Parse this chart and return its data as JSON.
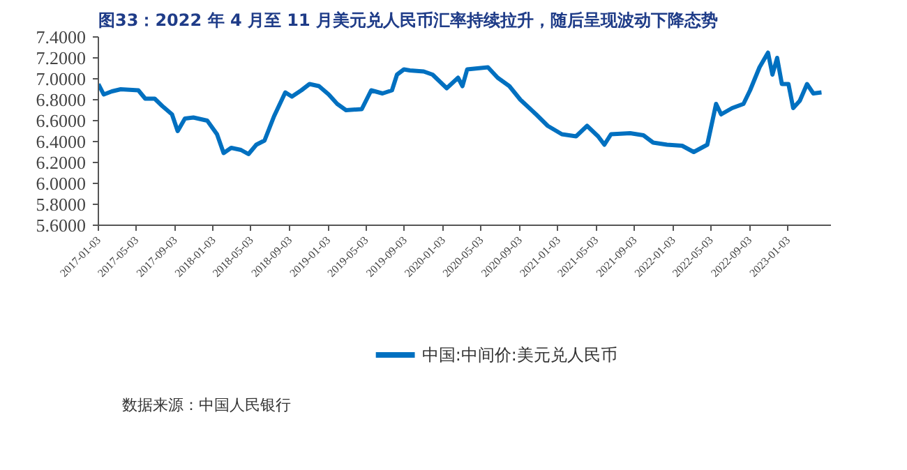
{
  "chart_data": {
    "type": "line",
    "title": "图33：2022 年 4 月至 11 月美元兑人民币汇率持续拉升，随后呈现波动下降态势",
    "x": [
      "2017-01-03",
      "2017-01-20",
      "2017-02-15",
      "2017-03-15",
      "2017-05-10",
      "2017-06-01",
      "2017-07-01",
      "2017-07-25",
      "2017-08-25",
      "2017-09-12",
      "2017-10-05",
      "2017-11-01",
      "2017-12-15",
      "2018-01-15",
      "2018-02-05",
      "2018-03-01",
      "2018-04-01",
      "2018-04-25",
      "2018-05-20",
      "2018-06-15",
      "2018-07-15",
      "2018-08-20",
      "2018-09-10",
      "2018-10-10",
      "2018-11-05",
      "2018-12-05",
      "2019-01-05",
      "2019-02-01",
      "2019-03-01",
      "2019-04-20",
      "2019-05-20",
      "2019-06-25",
      "2019-07-25",
      "2019-08-10",
      "2019-09-01",
      "2019-09-20",
      "2019-11-03",
      "2019-12-01",
      "2020-01-15",
      "2020-02-20",
      "2020-03-05",
      "2020-03-20",
      "2020-05-25",
      "2020-06-25",
      "2020-08-01",
      "2020-09-05",
      "2020-10-25",
      "2020-12-01",
      "2021-01-15",
      "2021-03-01",
      "2021-04-05",
      "2021-05-10",
      "2021-05-30",
      "2021-06-20",
      "2021-08-20",
      "2021-10-01",
      "2021-11-01",
      "2021-12-15",
      "2022-02-01",
      "2022-03-10",
      "2022-04-22",
      "2022-05-20",
      "2022-06-05",
      "2022-07-10",
      "2022-08-15",
      "2022-09-05",
      "2022-10-05",
      "2022-11-01",
      "2022-11-15",
      "2022-11-30",
      "2022-12-15",
      "2023-01-05",
      "2023-01-20",
      "2023-02-10",
      "2023-03-05",
      "2023-03-25",
      "2023-04-20"
    ],
    "series": [
      {
        "name": "中国:中间价:美元兑人民币",
        "color": "#0070c0",
        "values": [
          6.95,
          6.85,
          6.88,
          6.9,
          6.89,
          6.81,
          6.81,
          6.74,
          6.66,
          6.5,
          6.62,
          6.63,
          6.6,
          6.47,
          6.29,
          6.34,
          6.32,
          6.28,
          6.37,
          6.41,
          6.64,
          6.87,
          6.83,
          6.89,
          6.95,
          6.93,
          6.85,
          6.76,
          6.7,
          6.71,
          6.89,
          6.86,
          6.89,
          7.04,
          7.09,
          7.08,
          7.07,
          7.04,
          6.91,
          7.01,
          6.93,
          7.09,
          7.11,
          7.01,
          6.93,
          6.8,
          6.66,
          6.55,
          6.47,
          6.45,
          6.55,
          6.45,
          6.37,
          6.47,
          6.48,
          6.46,
          6.39,
          6.37,
          6.36,
          6.3,
          6.37,
          6.76,
          6.66,
          6.72,
          6.76,
          6.89,
          7.11,
          7.25,
          7.04,
          7.2,
          6.95,
          6.95,
          6.72,
          6.79,
          6.95,
          6.86,
          6.87
        ]
      }
    ],
    "xlim": [
      "2017-01-03",
      "2023-05-20"
    ],
    "xticks": [
      "2017-01-03",
      "2017-05-03",
      "2017-09-03",
      "2018-01-03",
      "2018-05-03",
      "2018-09-03",
      "2019-01-03",
      "2019-05-03",
      "2019-09-03",
      "2020-01-03",
      "2020-05-03",
      "2020-09-03",
      "2021-01-03",
      "2021-05-03",
      "2021-09-03",
      "2022-01-03",
      "2022-05-03",
      "2022-09-03",
      "2023-01-03"
    ],
    "ylim": [
      5.6,
      7.4
    ],
    "yticks": [
      {
        "value": 5.6,
        "label": "5.6000"
      },
      {
        "value": 5.8,
        "label": "5.8000"
      },
      {
        "value": 6.0,
        "label": "6.0000"
      },
      {
        "value": 6.2,
        "label": "6.2000"
      },
      {
        "value": 6.4,
        "label": "6.4000"
      },
      {
        "value": 6.6,
        "label": "6.6000"
      },
      {
        "value": 6.8,
        "label": "6.8000"
      },
      {
        "value": 7.0,
        "label": "7.0000"
      },
      {
        "value": 7.2,
        "label": "7.2000"
      },
      {
        "value": 7.4,
        "label": "7.4000"
      }
    ],
    "legend": "bottom",
    "grid": false,
    "marker": "none",
    "line_style": "solid",
    "annotations": [
      "数据来源：中国人民银行"
    ]
  }
}
